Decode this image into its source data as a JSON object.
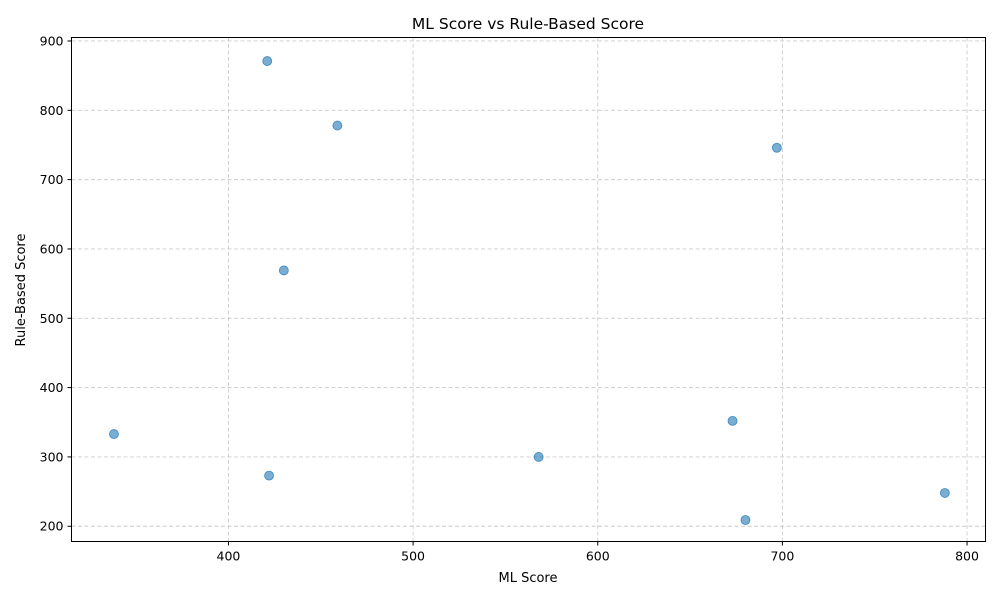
{
  "chart_data": {
    "type": "scatter",
    "title": "ML Score vs Rule-Based Score",
    "xlabel": "ML Score",
    "ylabel": "Rule-Based Score",
    "xlim": [
      315,
      810
    ],
    "ylim": [
      178,
      905
    ],
    "xticks": [
      400,
      500,
      600,
      700,
      800
    ],
    "yticks": [
      200,
      300,
      400,
      500,
      600,
      700,
      800,
      900
    ],
    "grid": true,
    "marker_color": "#1f77b4",
    "points": [
      {
        "x": 421,
        "y": 871
      },
      {
        "x": 459,
        "y": 778
      },
      {
        "x": 697,
        "y": 746
      },
      {
        "x": 430,
        "y": 569
      },
      {
        "x": 673,
        "y": 352
      },
      {
        "x": 338,
        "y": 333
      },
      {
        "x": 568,
        "y": 300
      },
      {
        "x": 422,
        "y": 273
      },
      {
        "x": 788,
        "y": 248
      },
      {
        "x": 680,
        "y": 209
      }
    ]
  }
}
